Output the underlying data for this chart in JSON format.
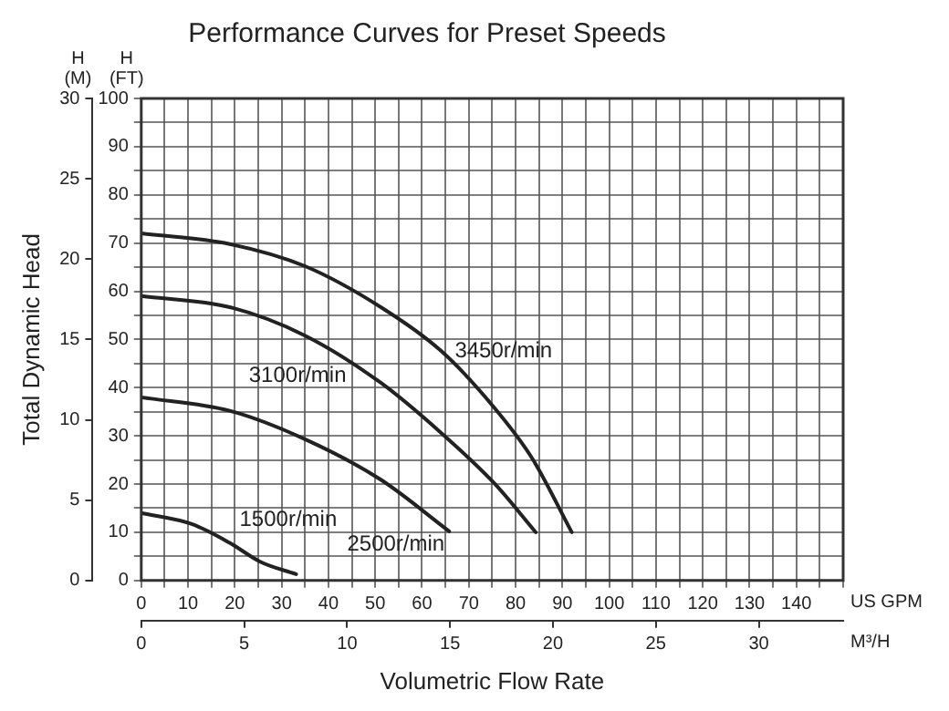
{
  "chart_data": {
    "type": "line",
    "title": "Performance Curves for Preset Speeds",
    "xlabel": "Volumetric Flow Rate",
    "ylabel": "Total Dynamic Head",
    "annotations": [
      "H (M)",
      "H (FT)",
      "US GPM",
      "M³/H"
    ],
    "xlim": [
      0,
      150
    ],
    "xticks": [
      0,
      {
        "value": 5,
        "label": null
      },
      10,
      {
        "value": 15,
        "label": null
      },
      20,
      {
        "value": 25,
        "label": null
      },
      30,
      {
        "value": 35,
        "label": null
      },
      40,
      {
        "value": 45,
        "label": null
      },
      50,
      {
        "value": 55,
        "label": null
      },
      60,
      {
        "value": 65,
        "label": null
      },
      70,
      {
        "value": 75,
        "label": null
      },
      80,
      {
        "value": 85,
        "label": null
      },
      90,
      {
        "value": 95,
        "label": null
      },
      100,
      {
        "value": 105,
        "label": null
      },
      110,
      {
        "value": 115,
        "label": null
      },
      120,
      {
        "value": 125,
        "label": null
      },
      130,
      {
        "value": 135,
        "label": null
      },
      140,
      {
        "value": 145,
        "label": null
      },
      {
        "value": 150,
        "label": null
      }
    ],
    "x2lim": [
      0,
      34.1
    ],
    "x2ticks": [
      0,
      5,
      10,
      15,
      20,
      25,
      30
    ],
    "ylim": [
      0,
      30
    ],
    "yticks": [
      0,
      5,
      10,
      15,
      20,
      25,
      30
    ],
    "y2lim": [
      0,
      100
    ],
    "y2ticks": [
      0,
      {
        "value": 5,
        "label": null
      },
      10,
      {
        "value": 15,
        "label": null
      },
      20,
      {
        "value": 25,
        "label": null
      },
      30,
      {
        "value": 35,
        "label": null
      },
      40,
      {
        "value": 45,
        "label": null
      },
      50,
      {
        "value": 55,
        "label": null
      },
      60,
      {
        "value": 65,
        "label": null
      },
      70,
      {
        "value": 75,
        "label": null
      },
      80,
      {
        "value": 85,
        "label": null
      },
      90,
      {
        "value": 95,
        "label": null
      },
      100
    ],
    "grid": true,
    "legend": false,
    "marker": "none",
    "line_style": "solid",
    "series": [
      {
        "name": "3450r/min",
        "color": "#222222",
        "axis": "y2",
        "x": [
          0,
          18.9,
          35,
          51.2,
          64.1,
          75.4,
          83.5,
          92
        ],
        "values": [
          72,
          69.8,
          65.2,
          56.7,
          47.6,
          35.9,
          25.4,
          10
        ]
      },
      {
        "name": "3100r/min",
        "color": "#222222",
        "axis": "y2",
        "x": [
          0,
          18.9,
          35,
          51.2,
          64.1,
          75.4,
          84.3
        ],
        "values": [
          59,
          56.7,
          50.8,
          41,
          30.6,
          20.2,
          10
        ]
      },
      {
        "name": "2500r/min",
        "color": "#222222",
        "axis": "y2",
        "x": [
          0,
          18.9,
          35,
          51.2,
          65.8
        ],
        "values": [
          38,
          35.2,
          29.3,
          20.9,
          10.2
        ]
      },
      {
        "name": "1500r/min",
        "color": "#222222",
        "axis": "y2",
        "x": [
          0,
          10.8,
          18.9,
          25.4,
          33.1
        ],
        "values": [
          14,
          11.7,
          7.8,
          3.9,
          1.3
        ]
      }
    ]
  }
}
